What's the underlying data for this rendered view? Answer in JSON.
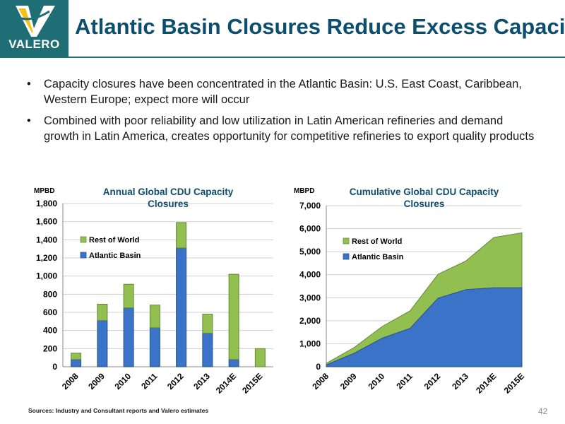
{
  "header": {
    "logo_text": "VALERO",
    "title": "Atlantic Basin Closures Reduce Excess Capacity",
    "colors": {
      "brand_teal": "#1f6e75",
      "title_navy": "#0d4d6e",
      "logo_yellow": "#f3c11b"
    }
  },
  "bullets": [
    "Capacity closures have been concentrated in the Atlantic Basin: U.S. East Coast, Caribbean, Western Europe; expect more will occur",
    "Combined with poor reliability and low utilization in Latin American refineries and demand growth in Latin America, creates opportunity for competitive refineries to export quality products"
  ],
  "bullet_symbol": "•",
  "footer": {
    "sources": "Sources:  Industry and Consultant reports and Valero estimates",
    "page_number": "42"
  },
  "chart_data": [
    {
      "type": "bar",
      "stacked": true,
      "title": "Annual Global CDU Capacity Closures",
      "title_lines": [
        "Annual Global CDU Capacity",
        "Closures"
      ],
      "ylabel": "MPBD",
      "categories": [
        "2008",
        "2009",
        "2010",
        "2011",
        "2012",
        "2013",
        "2014E",
        "2015E"
      ],
      "series": [
        {
          "name": "Atlantic Basin",
          "color": "#3b73c9",
          "values": [
            80,
            510,
            650,
            430,
            1310,
            370,
            80,
            0
          ]
        },
        {
          "name": "Rest of World",
          "color": "#92c050",
          "values": [
            70,
            180,
            260,
            250,
            280,
            210,
            940,
            200
          ]
        }
      ],
      "ylim": [
        0,
        1800
      ],
      "yticks": [
        0,
        200,
        400,
        600,
        800,
        1000,
        1200,
        1400,
        1600,
        1800
      ],
      "ytick_labels": [
        "0",
        "200",
        "400",
        "600",
        "800",
        "1,000",
        "1,200",
        "1,400",
        "1,600",
        "1,800"
      ],
      "grid": true,
      "legend": "upper-left"
    },
    {
      "type": "area",
      "stacked": true,
      "title": "Cumulative Global CDU Capacity Closures",
      "title_lines": [
        "Cumulative Global CDU Capacity",
        "Closures"
      ],
      "ylabel": "MBPD",
      "categories": [
        "2008",
        "2009",
        "2010",
        "2011",
        "2012",
        "2013",
        "2014E",
        "2015E"
      ],
      "series": [
        {
          "name": "Atlantic Basin",
          "color": "#3b73c9",
          "values": [
            80,
            590,
            1240,
            1670,
            2980,
            3350,
            3430,
            3430
          ]
        },
        {
          "name": "Rest of World",
          "color": "#92c050",
          "values": [
            70,
            250,
            510,
            760,
            1040,
            1250,
            2190,
            2390
          ]
        }
      ],
      "ylim": [
        0,
        7000
      ],
      "yticks": [
        0,
        1000,
        2000,
        3000,
        4000,
        5000,
        6000,
        7000
      ],
      "ytick_labels": [
        "0",
        "1,000",
        "2,000",
        "3,000",
        "4,000",
        "5,000",
        "6,000",
        "7,000"
      ],
      "grid": true,
      "legend": "upper-left"
    }
  ]
}
